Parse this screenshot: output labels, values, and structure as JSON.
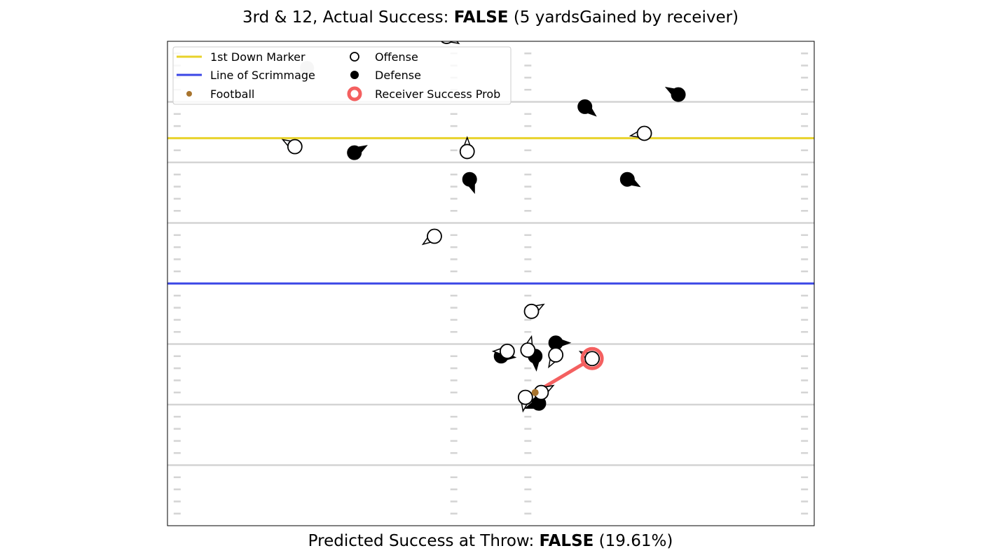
{
  "title": {
    "prefix": "3rd & 12, Actual Success: ",
    "value": "FALSE",
    "suffix": " (5 yardsGained by receiver)"
  },
  "subtitle": {
    "prefix": "Predicted Success at Throw: ",
    "value": "FALSE",
    "suffix": " (19.61%)"
  },
  "colors": {
    "first_down": "#e8d22a",
    "scrimmage": "#3a46e6",
    "football": "#a8742e",
    "receiver": "#f46060",
    "field_line": "#d4d4d4",
    "hash": "#d4d4d4"
  },
  "chart_data": {
    "type": "scatter",
    "xlim": [
      0,
      53.3
    ],
    "ylim": [
      40,
      80
    ],
    "yard_lines": [
      45,
      50,
      55,
      60,
      65,
      70,
      75
    ],
    "hash_columns": [
      0.8,
      23.6,
      29.7,
      52.5
    ],
    "first_down_marker": 72.0,
    "line_of_scrimmage": 60.0,
    "legend": {
      "placement": "top-left",
      "entries": [
        {
          "key": "first_down",
          "label": "1st Down Marker"
        },
        {
          "key": "scrimmage",
          "label": "Line of Scrimmage"
        },
        {
          "key": "football",
          "label": "Football"
        },
        {
          "key": "offense",
          "label": "Offense"
        },
        {
          "key": "defense",
          "label": "Defense"
        },
        {
          "key": "receiver",
          "label": "Receiver Success Prob"
        }
      ]
    },
    "football": {
      "x": 30.3,
      "y": 51.0
    },
    "receiver": {
      "x": 35.0,
      "y": 53.8
    },
    "offense": [
      {
        "x": 10.5,
        "y": 71.3,
        "dir": 150
      },
      {
        "x": 24.7,
        "y": 70.9,
        "dir": 90
      },
      {
        "x": 39.3,
        "y": 72.4,
        "dir": 190
      },
      {
        "x": 22.0,
        "y": 63.9,
        "dir": 215
      },
      {
        "x": 30.0,
        "y": 57.7,
        "dir": 30
      },
      {
        "x": 28.0,
        "y": 54.4,
        "dir": 180
      },
      {
        "x": 29.7,
        "y": 54.5,
        "dir": 75
      },
      {
        "x": 32.0,
        "y": 54.1,
        "dir": 240
      },
      {
        "x": 35.0,
        "y": 53.8,
        "dir": 150
      },
      {
        "x": 29.5,
        "y": 50.6,
        "dir": 260
      },
      {
        "x": 30.8,
        "y": 51.0,
        "dir": 30
      }
    ],
    "defense": [
      {
        "x": 15.4,
        "y": 70.8,
        "dir": 30
      },
      {
        "x": 34.4,
        "y": 74.6,
        "dir": 320
      },
      {
        "x": 42.1,
        "y": 75.6,
        "dir": 150
      },
      {
        "x": 24.9,
        "y": 68.6,
        "dir": 290
      },
      {
        "x": 37.9,
        "y": 68.6,
        "dir": 330
      },
      {
        "x": 27.5,
        "y": 54.0,
        "dir": 355
      },
      {
        "x": 30.3,
        "y": 54.0,
        "dir": 275
      },
      {
        "x": 32.0,
        "y": 55.1,
        "dir": 0
      },
      {
        "x": 30.6,
        "y": 50.1,
        "dir": 200
      }
    ],
    "partial_markers": [
      {
        "type": "offense",
        "x": 23.0,
        "y": 80.4,
        "dir": 330
      },
      {
        "type": "gray",
        "x": 11.5,
        "y": 77.8,
        "dir": 0
      }
    ]
  }
}
